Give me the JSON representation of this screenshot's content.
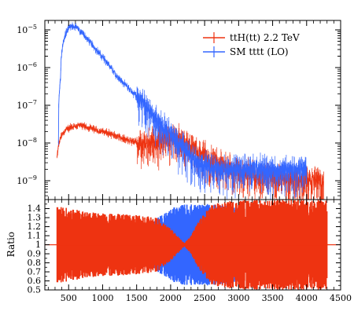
{
  "chart_data": [
    {
      "type": "line",
      "panel": "main",
      "title": "",
      "xlabel": "",
      "ylabel": "",
      "yscale": "log",
      "xlim": [
        150,
        4500
      ],
      "ylim_exponents": [
        -9.5,
        -4.75
      ],
      "yticks": [
        {
          "exp": -5,
          "label": "10",
          "sup": "−5"
        },
        {
          "exp": -6,
          "label": "10",
          "sup": "−6"
        },
        {
          "exp": -7,
          "label": "10",
          "sup": "−7"
        },
        {
          "exp": -8,
          "label": "10",
          "sup": "−8"
        },
        {
          "exp": -9,
          "label": "10",
          "sup": "−9"
        }
      ],
      "legend_position": "top-right",
      "series": [
        {
          "name": "ttH(tt) 2.2 TeV",
          "color": "#ee3311",
          "x": [
            330,
            360,
            400,
            450,
            500,
            550,
            600,
            650,
            700,
            800,
            900,
            1000,
            1100,
            1200,
            1300,
            1400,
            1500,
            1600,
            1700,
            1800,
            1900,
            2000,
            2100,
            2200,
            2300,
            2400,
            2500,
            2600,
            2700,
            2800,
            2900,
            3000,
            3200,
            3400,
            3600,
            3800,
            4000,
            4250
          ],
          "y": [
            4e-09,
            1e-08,
            1.6e-08,
            2.1e-08,
            2.5e-08,
            2.7e-08,
            2.8e-08,
            2.9e-08,
            2.8e-08,
            2.5e-08,
            2.2e-08,
            2e-08,
            1.8e-08,
            1.5e-08,
            1.3e-08,
            1.1e-08,
            1.05e-08,
            1e-08,
            1.05e-08,
            1.15e-08,
            1.3e-08,
            1.4e-08,
            1.3e-08,
            1.1e-08,
            8e-09,
            6e-09,
            4.5e-09,
            3.5e-09,
            3e-09,
            2.5e-09,
            2e-09,
            1.8e-09,
            1.5e-09,
            1.3e-09,
            1.2e-09,
            1.1e-09,
            1e-09,
            1e-09
          ]
        },
        {
          "name": "SM tttt (LO)",
          "color": "#3366ff",
          "x": [
            350,
            380,
            400,
            450,
            500,
            550,
            600,
            650,
            700,
            800,
            900,
            1000,
            1100,
            1200,
            1300,
            1400,
            1500,
            1600,
            1700,
            1800,
            1900,
            2000,
            2100,
            2200,
            2300,
            2400,
            2500,
            2600,
            2800,
            3000,
            3500,
            4000
          ],
          "y": [
            1e-08,
            5e-07,
            2.5e-06,
            7e-06,
            1.1e-05,
            1.3e-05,
            1.2e-05,
            1e-05,
            8e-06,
            5e-06,
            3e-06,
            1.8e-06,
            1.1e-06,
            6e-07,
            4e-07,
            2.5e-07,
            1.7e-07,
            1.1e-07,
            7e-08,
            4e-08,
            2.5e-08,
            1.6e-08,
            1e-08,
            7e-09,
            4e-09,
            3e-09,
            2.5e-09,
            2e-09,
            2e-09,
            2e-09,
            2e-09,
            2e-09
          ]
        }
      ]
    },
    {
      "type": "line",
      "panel": "ratio",
      "title": "",
      "xlabel": "",
      "ylabel": "Ratio",
      "xlim": [
        150,
        4500
      ],
      "ylim": [
        0.5,
        1.5
      ],
      "yticks": [
        "0.5",
        "0.6",
        "0.7",
        "0.8",
        "0.9",
        "1",
        "1.1",
        "1.2",
        "1.3",
        "1.4"
      ],
      "xticks": [
        "500",
        "1000",
        "1500",
        "2000",
        "2500",
        "3000",
        "3500",
        "4000",
        "4500"
      ],
      "reference_line": 1,
      "series": [
        {
          "name": "ttH(tt) 2.2 TeV",
          "color": "#ee3311",
          "x": [
            330,
            500,
            1000,
            1500,
            1800,
            2000,
            2100,
            2200,
            2300,
            2400,
            2600,
            3000,
            4300
          ],
          "band_halfwidth": [
            0.45,
            0.4,
            0.35,
            0.33,
            0.3,
            0.18,
            0.1,
            0.02,
            0.1,
            0.25,
            0.45,
            0.5,
            0.5
          ]
        },
        {
          "name": "SM tttt (LO)",
          "color": "#3366ff",
          "x": [
            1500,
            1800,
            2000,
            2200,
            2400,
            2700,
            3000
          ],
          "band_halfwidth": [
            0.1,
            0.3,
            0.4,
            0.45,
            0.45,
            0.45,
            0.4
          ]
        }
      ]
    }
  ]
}
